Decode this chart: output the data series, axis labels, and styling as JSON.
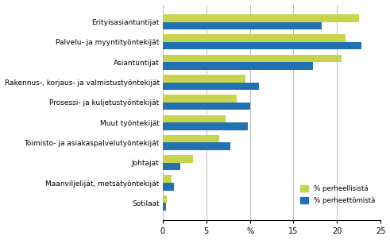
{
  "categories": [
    "Sotilaat",
    "Maanviljelijät, metsätyöntekijät",
    "Johtajat",
    "Toimisto- ja asiakaspalvelutyöntekijät",
    "Muut työntekijät",
    "Prosessi- ja kuljetustyöntekijät",
    "Rakennus-, korjaus- ja valmistustyöntekijät",
    "Asiantuntijat",
    "Palvelu- ja myyntityöntekijät",
    "Erityisasiantuntijat"
  ],
  "perheelliset": [
    0.5,
    1.0,
    3.5,
    6.5,
    7.2,
    8.5,
    9.5,
    20.5,
    21.0,
    22.5
  ],
  "perheettomät": [
    0.4,
    1.3,
    2.0,
    7.8,
    9.8,
    10.0,
    11.0,
    17.2,
    22.8,
    18.2
  ],
  "color_perheelliset": "#c8d44e",
  "color_perheettomät": "#2271b3",
  "legend_perheelliset": "% perheellisistä",
  "legend_perheettomät": "% perheettömistä",
  "xlim": [
    0,
    25
  ],
  "xticks": [
    0,
    5,
    10,
    15,
    20,
    25
  ],
  "xtick_labels": [
    "0",
    "5",
    "%",
    "15",
    "20",
    "25"
  ],
  "bar_height": 0.38,
  "background_color": "#ffffff",
  "grid_color": "#bbbbbb",
  "label_fontsize": 6.5,
  "tick_fontsize": 7
}
